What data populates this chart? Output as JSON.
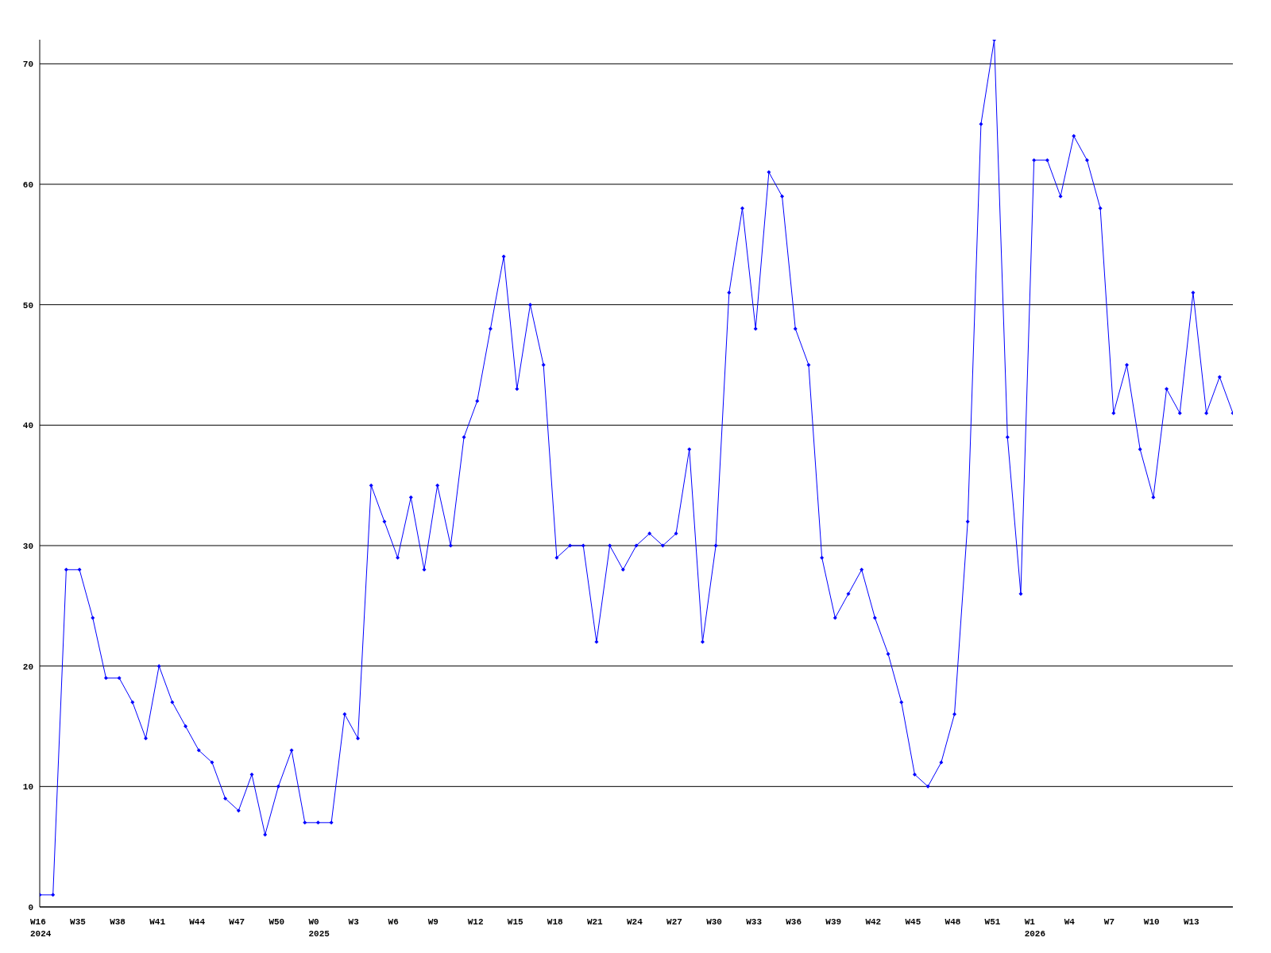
{
  "chart_data": {
    "type": "line",
    "categories": [
      "W16\n2024",
      null,
      null,
      "W35",
      null,
      null,
      "W38",
      null,
      null,
      "W41",
      null,
      null,
      "W44",
      null,
      null,
      "W47",
      null,
      null,
      "W50",
      null,
      null,
      "W0\n2025",
      null,
      null,
      "W3",
      null,
      null,
      "W6",
      null,
      null,
      "W9",
      null,
      null,
      "W12",
      null,
      null,
      "W15",
      null,
      null,
      "W18",
      null,
      null,
      "W21",
      null,
      null,
      "W24",
      null,
      null,
      "W27",
      null,
      null,
      "W30",
      null,
      null,
      "W33",
      null,
      null,
      "W36",
      null,
      null,
      "W39",
      null,
      null,
      "W42",
      null,
      null,
      "W45",
      null,
      null,
      "W48",
      null,
      null,
      "W51",
      null,
      null,
      "W1\n2026",
      null,
      null,
      "W4",
      null,
      null,
      "W7",
      null,
      null,
      "W10",
      null,
      null,
      "W13",
      null,
      null,
      null
    ],
    "series": [
      {
        "color": "#0000ff",
        "values": [
          1,
          1,
          28,
          28,
          24,
          19,
          19,
          17,
          14,
          20,
          17,
          15,
          13,
          12,
          9,
          8,
          11,
          6,
          10,
          13,
          7,
          7,
          7,
          16,
          14,
          35,
          32,
          29,
          34,
          28,
          35,
          30,
          39,
          42,
          48,
          54,
          43,
          50,
          45,
          29,
          30,
          30,
          22,
          30,
          28,
          30,
          31,
          30,
          31,
          38,
          22,
          30,
          51,
          58,
          48,
          61,
          59,
          48,
          45,
          29,
          24,
          26,
          28,
          24,
          21,
          17,
          11,
          10,
          12,
          16,
          32,
          65,
          72,
          39,
          26,
          62,
          62,
          59,
          64,
          62,
          58,
          41,
          45,
          38,
          34,
          43,
          41,
          51,
          41,
          44,
          41
        ]
      }
    ],
    "ylim": [
      0,
      72
    ],
    "yticks": [
      0,
      10,
      20,
      30,
      40,
      50,
      60,
      70
    ],
    "grid": "y",
    "marker": "diamond",
    "line_style": "solid"
  }
}
